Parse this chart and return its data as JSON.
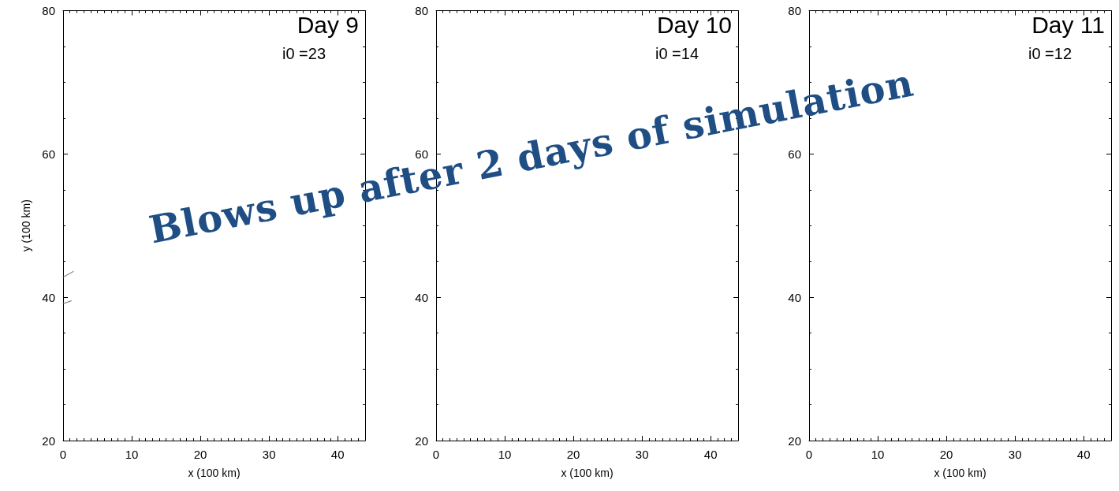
{
  "chart_data": [
    {
      "type": "line",
      "title": "Day 9",
      "subtitle": "i0 =23",
      "xlabel": "x (100 km)",
      "ylabel": "y (100 km)",
      "xlim": [
        0,
        44
      ],
      "xticks": [
        0,
        10,
        20,
        30,
        40
      ],
      "ylim": [
        20,
        80
      ],
      "yticks": [
        20,
        40,
        60,
        80
      ],
      "grid": false,
      "marker": "none",
      "line_style": "solid",
      "annotations": [
        "Blows up after 2 days of simulation"
      ],
      "series": [
        {
          "color": "#666666",
          "x": [
            0,
            1.5
          ],
          "values": [
            42.8,
            43.6
          ]
        },
        {
          "color": "#666666",
          "x": [
            0,
            1.2
          ],
          "values": [
            39.1,
            39.5
          ]
        }
      ]
    },
    {
      "type": "line",
      "title": "Day 10",
      "subtitle": "i0 =14",
      "xlabel": "x (100 km)",
      "xlim": [
        0,
        44
      ],
      "xticks": [
        0,
        10,
        20,
        30,
        40
      ],
      "ylim": [
        20,
        80
      ],
      "yticks": [
        20,
        40,
        60,
        80
      ],
      "grid": false
    },
    {
      "type": "line",
      "title": "Day 11",
      "subtitle": "i0 =12",
      "xlabel": "x (100 km)",
      "xlim": [
        0,
        44
      ],
      "xticks": [
        0,
        10,
        20,
        30,
        40
      ],
      "ylim": [
        20,
        80
      ],
      "yticks": [
        20,
        40,
        60,
        80
      ],
      "grid": false
    }
  ]
}
